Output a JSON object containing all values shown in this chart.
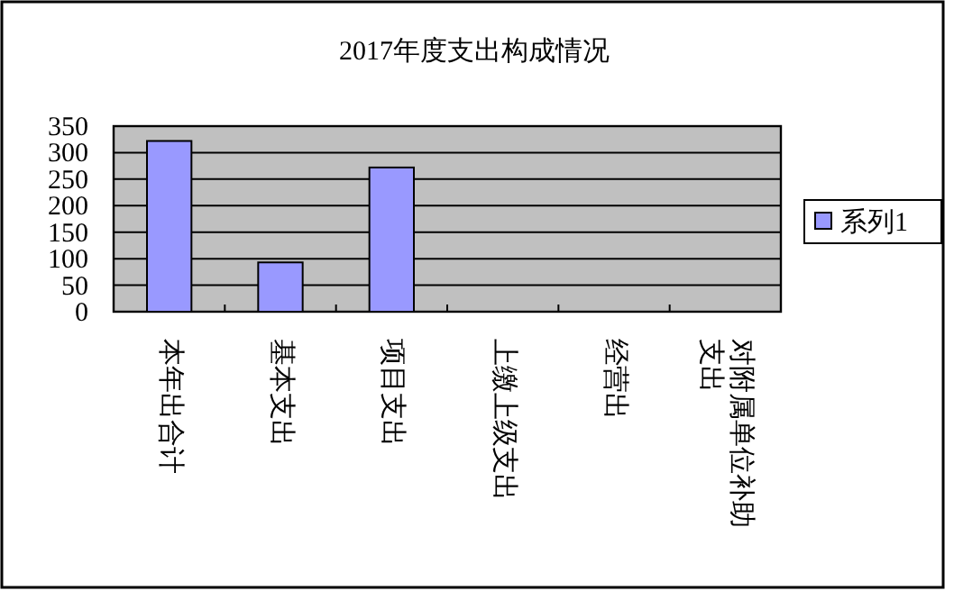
{
  "chart_data": {
    "type": "bar",
    "title": "2017年度支出构成情况",
    "categories": [
      "本年出合计",
      "基本支出",
      "项目支出",
      "上缴上级支出",
      "经营出",
      "对附属单位补助支出"
    ],
    "series": [
      {
        "name": "系列1",
        "color": "#9999ff",
        "values": [
          322,
          93,
          272,
          null,
          null,
          null
        ]
      }
    ],
    "ylim": [
      0,
      350
    ],
    "yticks": [
      0,
      50,
      100,
      150,
      200,
      250,
      300,
      350
    ],
    "grid": "y",
    "legend": "right"
  }
}
